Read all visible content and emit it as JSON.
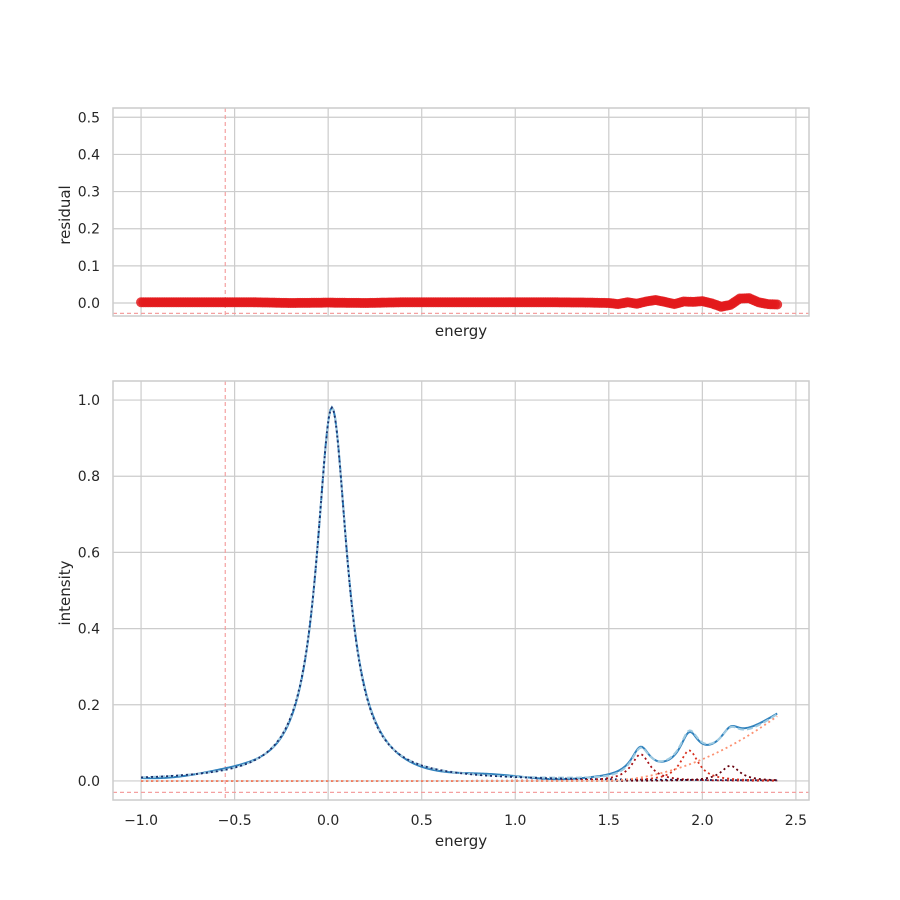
{
  "chart_data": [
    {
      "type": "scatter",
      "panel": "residual",
      "xlabel": "energy",
      "ylabel": "residual",
      "ylim": [
        -0.035,
        0.525
      ],
      "xlim": [
        -1.15,
        2.57
      ],
      "grid": true,
      "yticks": [
        "0.0",
        "0.1",
        "0.2",
        "0.3",
        "0.4",
        "0.5"
      ],
      "ytick_values": [
        0.0,
        0.1,
        0.2,
        0.3,
        0.4,
        0.5
      ],
      "xtick_values": [
        -1.0,
        -0.5,
        0.0,
        0.5,
        1.0,
        1.5,
        2.0,
        2.5
      ],
      "vline_x": -0.55,
      "hline_y": -0.028,
      "series": [
        {
          "color": "#e31a1c",
          "x": [
            -1.0,
            -0.8,
            -0.6,
            -0.4,
            -0.2,
            0.0,
            0.2,
            0.4,
            0.6,
            0.8,
            1.0,
            1.2,
            1.4,
            1.5,
            1.55,
            1.6,
            1.65,
            1.7,
            1.75,
            1.8,
            1.85,
            1.9,
            1.95,
            2.0,
            2.05,
            2.1,
            2.15,
            2.2,
            2.25,
            2.3,
            2.35,
            2.4
          ],
          "values": [
            0.002,
            0.002,
            0.002,
            0.002,
            0.0,
            0.001,
            0.0,
            0.002,
            0.002,
            0.002,
            0.002,
            0.002,
            0.001,
            0.0,
            -0.003,
            0.002,
            -0.002,
            0.004,
            0.008,
            0.003,
            -0.003,
            0.004,
            0.003,
            0.005,
            -0.001,
            -0.01,
            -0.005,
            0.012,
            0.013,
            0.002,
            -0.003,
            -0.004
          ]
        }
      ]
    },
    {
      "type": "line",
      "panel": "intensity",
      "xlabel": "energy",
      "ylabel": "intensity",
      "ylim": [
        -0.05,
        1.05
      ],
      "xlim": [
        -1.15,
        2.57
      ],
      "grid": true,
      "xticks": [
        "−1.0",
        "−0.5",
        "0.0",
        "0.5",
        "1.0",
        "1.5",
        "2.0",
        "2.5"
      ],
      "xtick_values": [
        -1.0,
        -0.5,
        0.0,
        0.5,
        1.0,
        1.5,
        2.0,
        2.5
      ],
      "yticks": [
        "0.0",
        "0.2",
        "0.4",
        "0.6",
        "0.8",
        "1.0"
      ],
      "ytick_values": [
        0.0,
        0.2,
        0.4,
        0.6,
        0.8,
        1.0
      ],
      "vline_x": -0.55,
      "hline_y": -0.03,
      "x_range": [
        -1.0,
        2.4
      ],
      "components": [
        {
          "kind": "lorentzian",
          "center": 0.02,
          "amplitude": 0.98,
          "hwhm": 0.1,
          "color": "#1a2e6b",
          "style": "dotted"
        },
        {
          "kind": "lorentzian",
          "center": 1.67,
          "amplitude": 0.07,
          "hwhm": 0.06,
          "color": "#a50f15",
          "style": "dotted"
        },
        {
          "kind": "lorentzian",
          "center": 1.93,
          "amplitude": 0.08,
          "hwhm": 0.06,
          "color": "#d7301f",
          "style": "dotted"
        },
        {
          "kind": "lorentzian",
          "center": 2.15,
          "amplitude": 0.04,
          "hwhm": 0.06,
          "color": "#67000d",
          "style": "dotted"
        },
        {
          "kind": "rising_background",
          "start": 1.45,
          "end": 2.4,
          "end_value": 0.17,
          "color": "#fc9272",
          "style": "dotted"
        }
      ],
      "series": [
        {
          "role": "data",
          "color": "#3182bd",
          "style": "solid"
        },
        {
          "role": "fit",
          "color": "#9ecae1",
          "style": "dashed"
        }
      ]
    }
  ]
}
